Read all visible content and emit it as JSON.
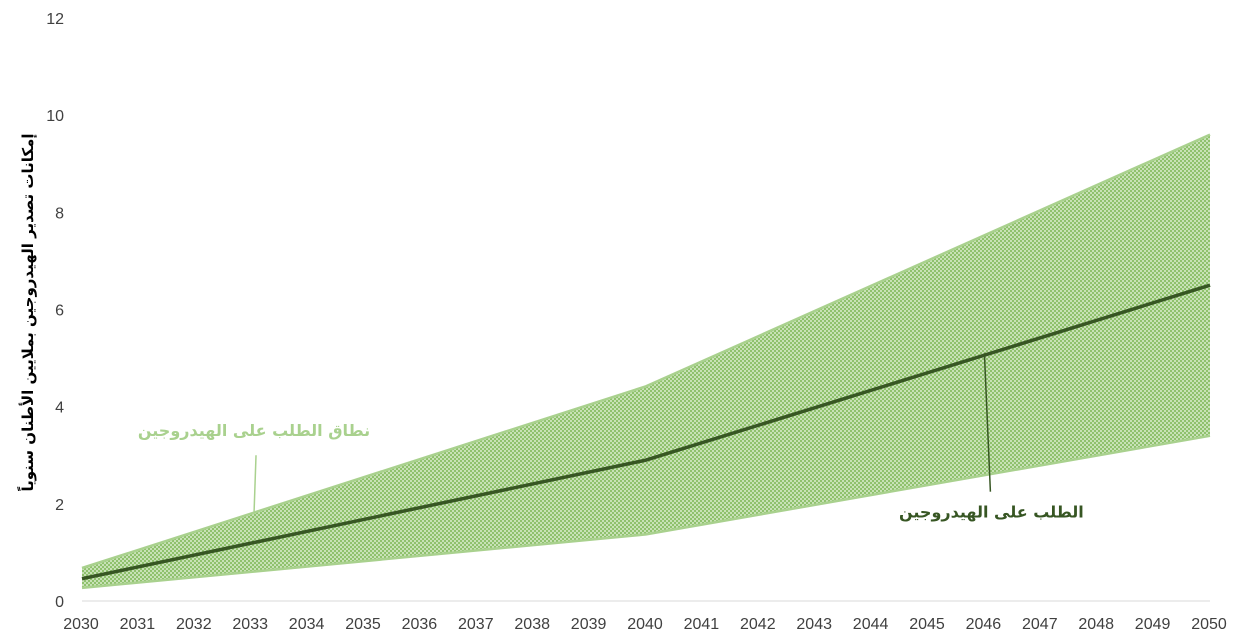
{
  "chart_data": {
    "type": "area",
    "title": "",
    "xlabel": "",
    "ylabel": "إمكانات تصدير الهيدروجين بملايين الأطنان سنوياً",
    "x": [
      2030,
      2031,
      2032,
      2033,
      2034,
      2035,
      2036,
      2037,
      2038,
      2039,
      2040,
      2041,
      2042,
      2043,
      2044,
      2045,
      2046,
      2047,
      2048,
      2049,
      2050
    ],
    "xlim": [
      2030,
      2050
    ],
    "ylim": [
      0,
      12
    ],
    "yticks": [
      0,
      2,
      4,
      6,
      8,
      10,
      12
    ],
    "grid": false,
    "legend": "none",
    "series": [
      {
        "name": "نطاق الطلب على الهيدروجين",
        "kind": "band",
        "color": "#a9d18e",
        "x": [
          2030,
          2040,
          2050
        ],
        "lower": [
          0.27,
          1.37,
          3.4
        ],
        "upper": [
          0.68,
          4.42,
          9.6
        ]
      },
      {
        "name": "الطلب على الهيدروجين",
        "kind": "line",
        "color": "#375623",
        "x": [
          2030,
          2040,
          2050
        ],
        "values": [
          0.46,
          2.9,
          6.5
        ]
      }
    ],
    "annotations": [
      {
        "text": "نطاق الطلب على الهيدروجين",
        "color": "#a9d18e",
        "points_to": {
          "x": 2033,
          "y": 1.8
        }
      },
      {
        "text": "الطلب على الهيدروجين",
        "color": "#375623",
        "points_to": {
          "x": 2046,
          "y": 5.1
        }
      }
    ]
  }
}
